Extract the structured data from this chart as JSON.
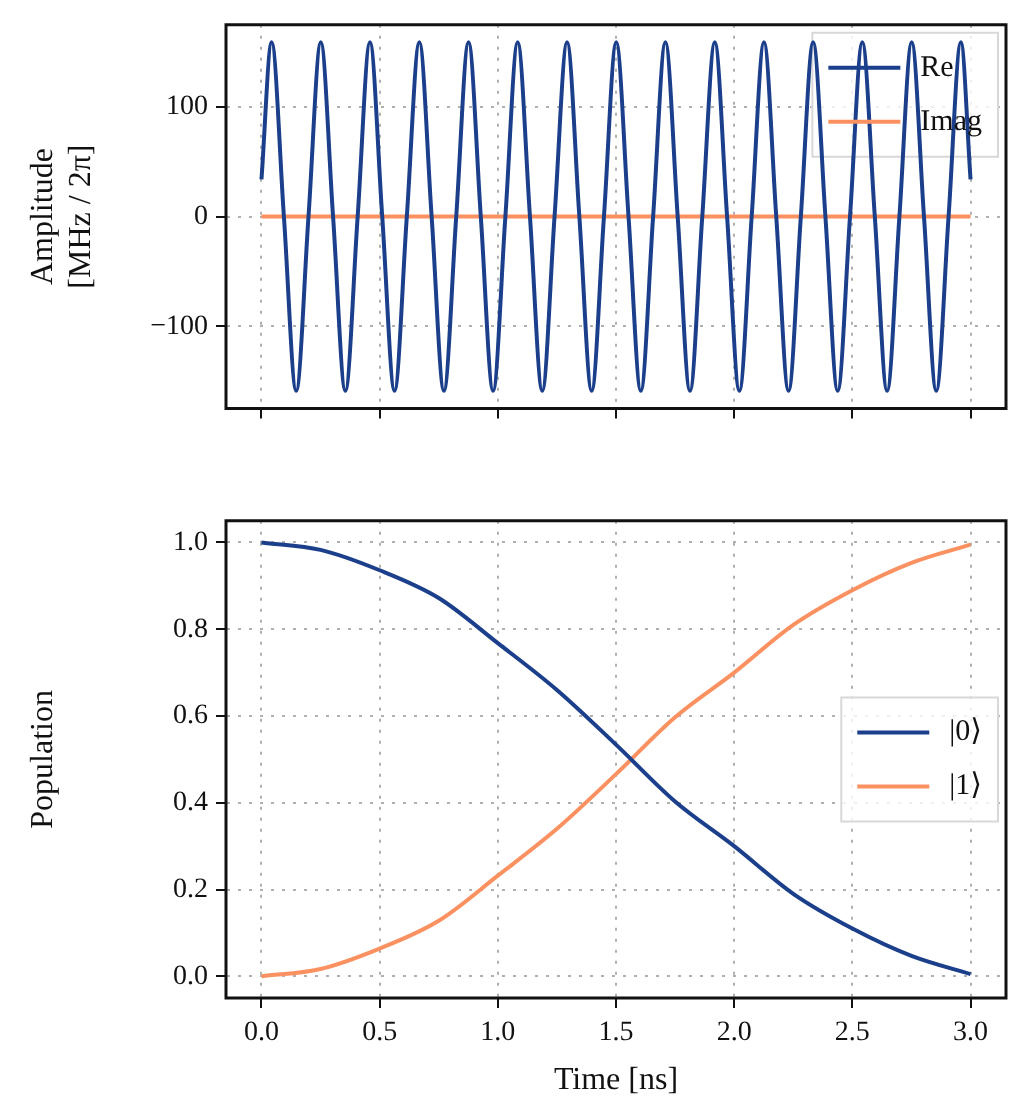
{
  "chart_data": [
    {
      "type": "line",
      "ylabel": "Amplitude\n[MHz / 2π]",
      "xlim": [
        -0.15,
        3.15
      ],
      "xticks": [
        {
          "value": 0,
          "label": null
        },
        {
          "value": 0.5,
          "label": null
        },
        {
          "value": 1,
          "label": null
        },
        {
          "value": 1.5,
          "label": null
        },
        {
          "value": 2,
          "label": null
        },
        {
          "value": 2.5,
          "label": null
        },
        {
          "value": 3,
          "label": null
        }
      ],
      "ylim": [
        -175,
        175
      ],
      "yticks": [
        -100,
        0,
        100
      ],
      "grid": true,
      "legend": "top right",
      "tick_labels": "y",
      "series": [
        {
          "name": "Re",
          "color": "#1b3f8b",
          "x": [
            0,
            0.043,
            0.095,
            0.147,
            0.199,
            0.251,
            0.303,
            0.355,
            0.407,
            0.459,
            0.511,
            0.563,
            0.615,
            0.668,
            0.72,
            0.772,
            0.824,
            0.876,
            0.928,
            0.98,
            1.032,
            1.084,
            1.136,
            1.188,
            1.24,
            1.293,
            1.345,
            1.397,
            1.449,
            1.501,
            1.553,
            1.605,
            1.657,
            1.709,
            1.761,
            1.813,
            1.865,
            1.918,
            1.97,
            2.022,
            2.074,
            2.126,
            2.178,
            2.23,
            2.282,
            2.334,
            2.386,
            2.438,
            2.49,
            2.542,
            2.595,
            2.647,
            2.699,
            2.751,
            2.803,
            2.855,
            2.907,
            2.959,
            3
          ],
          "values": [
            34,
            159,
            0,
            -159,
            0,
            159,
            0,
            -159,
            0,
            159,
            0,
            -159,
            0,
            159,
            0,
            -159,
            0,
            159,
            0,
            -159,
            0,
            159,
            0,
            -159,
            0,
            159,
            0,
            -159,
            0,
            159,
            0,
            -159,
            0,
            159,
            0,
            -159,
            0,
            159,
            0,
            -159,
            0,
            159,
            0,
            -159,
            0,
            159,
            0,
            -159,
            0,
            159,
            0,
            -159,
            0,
            159,
            0,
            -159,
            0,
            159,
            34
          ]
        },
        {
          "name": "Imag",
          "color": "#fb9160",
          "x": [
            0,
            3
          ],
          "values": [
            0,
            0
          ]
        }
      ]
    },
    {
      "type": "line",
      "xlabel": "Time [ns]",
      "ylabel": "Population",
      "xlim": [
        -0.15,
        3.15
      ],
      "xticks": [
        {
          "value": 0,
          "label": "0.0"
        },
        0.5,
        {
          "value": 1,
          "label": "1.0"
        },
        1.5,
        {
          "value": 2,
          "label": "2.0"
        },
        2.5,
        {
          "value": 3,
          "label": "3.0"
        }
      ],
      "ylim": [
        -0.05,
        1.05
      ],
      "yticks": [
        {
          "value": 0,
          "label": "0.0"
        },
        0.2,
        0.4,
        0.6,
        0.8,
        {
          "value": 1,
          "label": "1.0"
        }
      ],
      "grid": true,
      "legend": "right",
      "series": [
        {
          "name": "|0⟩",
          "color": "#1b3f8b",
          "x": [
            0,
            0.25,
            0.5,
            0.75,
            1,
            1.25,
            1.5,
            1.75,
            2,
            2.25,
            2.5,
            2.75,
            3
          ],
          "values": [
            1,
            0.983,
            0.936,
            0.872,
            0.768,
            0.66,
            0.534,
            0.403,
            0.3,
            0.19,
            0.11,
            0.047,
            0.005
          ]
        },
        {
          "name": "|1⟩",
          "color": "#fb9160",
          "x": [
            0,
            0.25,
            0.5,
            0.75,
            1,
            1.25,
            1.5,
            1.75,
            2,
            2.25,
            2.5,
            2.75,
            3
          ],
          "values": [
            0,
            0.017,
            0.064,
            0.128,
            0.232,
            0.34,
            0.466,
            0.597,
            0.7,
            0.81,
            0.89,
            0.953,
            0.995
          ]
        }
      ]
    }
  ]
}
